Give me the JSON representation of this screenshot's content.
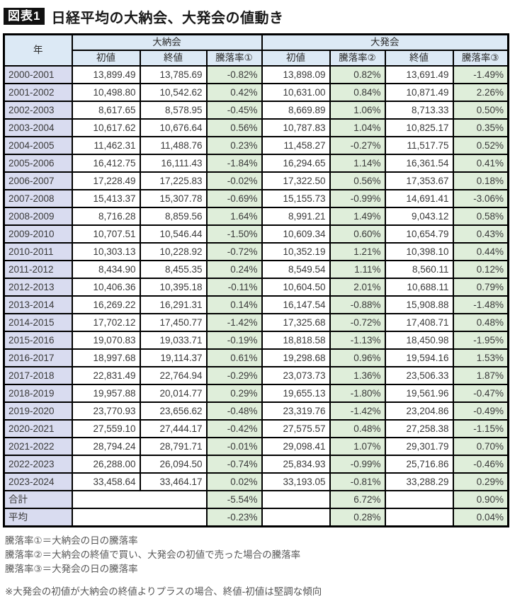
{
  "figure": {
    "badge": "図表1",
    "title": "日経平均の大納会、大発会の値動き"
  },
  "notes": [
    "騰落率①＝大納会の日の騰落率",
    "騰落率②＝大納会の終値で買い、大発会の初値で売った場合の騰落率",
    "騰落率③＝大発会の日の騰落率"
  ],
  "remark": "※大発会の初値が大納会の終値よりプラスの場合、終値-初値は堅調な傾向",
  "colors": {
    "header_bg": "#dce9f5",
    "year_bg": "#d9dcf0",
    "rate_bg": "#dfeeda",
    "border": "#000000",
    "badge_bg": "#111111"
  },
  "chart_data": {
    "type": "table",
    "title": "日経平均の大納会、大発会の値動き",
    "groups": [
      "大納会",
      "大発会"
    ],
    "columns": [
      "年",
      "初値",
      "終値",
      "騰落率①",
      "初値",
      "騰落率②",
      "終値",
      "騰落率③"
    ],
    "rows": [
      [
        "2000-2001",
        "13,899.49",
        "13,785.69",
        "-0.82%",
        "13,898.09",
        "0.82%",
        "13,691.49",
        "-1.49%"
      ],
      [
        "2001-2002",
        "10,498.80",
        "10,542.62",
        "0.42%",
        "10,631.00",
        "0.84%",
        "10,871.49",
        "2.26%"
      ],
      [
        "2002-2003",
        "8,617.65",
        "8,578.95",
        "-0.45%",
        "8,669.89",
        "1.06%",
        "8,713.33",
        "0.50%"
      ],
      [
        "2003-2004",
        "10,617.62",
        "10,676.64",
        "0.56%",
        "10,787.83",
        "1.04%",
        "10,825.17",
        "0.35%"
      ],
      [
        "2004-2005",
        "11,462.31",
        "11,488.76",
        "0.23%",
        "11,458.27",
        "-0.27%",
        "11,517.75",
        "0.52%"
      ],
      [
        "2005-2006",
        "16,412.75",
        "16,111.43",
        "-1.84%",
        "16,294.65",
        "1.14%",
        "16,361.54",
        "0.41%"
      ],
      [
        "2006-2007",
        "17,228.49",
        "17,225.83",
        "-0.02%",
        "17,322.50",
        "0.56%",
        "17,353.67",
        "0.18%"
      ],
      [
        "2007-2008",
        "15,413.37",
        "15,307.78",
        "-0.69%",
        "15,155.73",
        "-0.99%",
        "14,691.41",
        "-3.06%"
      ],
      [
        "2008-2009",
        "8,716.28",
        "8,859.56",
        "1.64%",
        "8,991.21",
        "1.49%",
        "9,043.12",
        "0.58%"
      ],
      [
        "2009-2010",
        "10,707.51",
        "10,546.44",
        "-1.50%",
        "10,609.34",
        "0.60%",
        "10,654.79",
        "0.43%"
      ],
      [
        "2010-2011",
        "10,303.13",
        "10,228.92",
        "-0.72%",
        "10,352.19",
        "1.21%",
        "10,398.10",
        "0.44%"
      ],
      [
        "2011-2012",
        "8,434.90",
        "8,455.35",
        "0.24%",
        "8,549.54",
        "1.11%",
        "8,560.11",
        "0.12%"
      ],
      [
        "2012-2013",
        "10,406.36",
        "10,395.18",
        "-0.11%",
        "10,604.50",
        "2.01%",
        "10,688.11",
        "0.79%"
      ],
      [
        "2013-2014",
        "16,269.22",
        "16,291.31",
        "0.14%",
        "16,147.54",
        "-0.88%",
        "15,908.88",
        "-1.48%"
      ],
      [
        "2014-2015",
        "17,702.12",
        "17,450.77",
        "-1.42%",
        "17,325.68",
        "-0.72%",
        "17,408.71",
        "0.48%"
      ],
      [
        "2015-2016",
        "19,070.83",
        "19,033.71",
        "-0.19%",
        "18,818.58",
        "-1.13%",
        "18,450.98",
        "-1.95%"
      ],
      [
        "2016-2017",
        "18,997.68",
        "19,114.37",
        "0.61%",
        "19,298.68",
        "0.96%",
        "19,594.16",
        "1.53%"
      ],
      [
        "2017-2018",
        "22,831.49",
        "22,764.94",
        "-0.29%",
        "23,073.73",
        "1.36%",
        "23,506.33",
        "1.87%"
      ],
      [
        "2018-2019",
        "19,957.88",
        "20,014.77",
        "0.29%",
        "19,655.13",
        "-1.80%",
        "19,561.96",
        "-0.47%"
      ],
      [
        "2019-2020",
        "23,770.93",
        "23,656.62",
        "-0.48%",
        "23,319.76",
        "-1.42%",
        "23,204.86",
        "-0.49%"
      ],
      [
        "2020-2021",
        "27,559.10",
        "27,444.17",
        "-0.42%",
        "27,575.57",
        "0.48%",
        "27,258.38",
        "-1.15%"
      ],
      [
        "2021-2022",
        "28,794.24",
        "28,791.71",
        "-0.01%",
        "29,098.41",
        "1.07%",
        "29,301.79",
        "0.70%"
      ],
      [
        "2022-2023",
        "26,288.00",
        "26,094.50",
        "-0.74%",
        "25,834.93",
        "-0.99%",
        "25,716.86",
        "-0.46%"
      ],
      [
        "2023-2024",
        "33,458.64",
        "33,464.17",
        "0.02%",
        "33,193.05",
        "-0.81%",
        "33,288.29",
        "0.29%"
      ]
    ],
    "total": {
      "label": "合計",
      "rate1": "-5.54%",
      "rate2": "6.72%",
      "rate3": "0.90%"
    },
    "average": {
      "label": "平均",
      "rate1": "-0.23%",
      "rate2": "0.28%",
      "rate3": "0.04%"
    }
  }
}
